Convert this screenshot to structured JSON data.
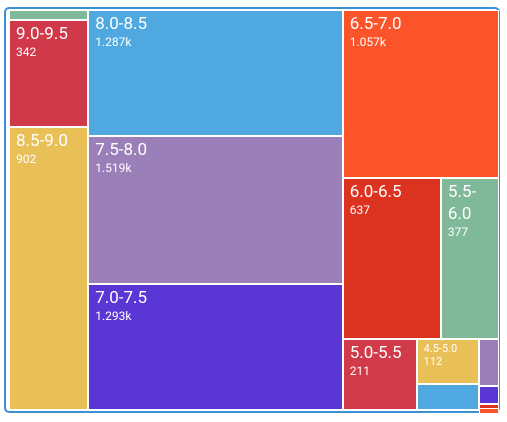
{
  "chart_data": {
    "type": "treemap",
    "categories": [
      null,
      "9.0-9.5",
      "8.5-9.0",
      "8.0-8.5",
      "7.5-8.0",
      "7.0-7.5",
      "6.5-7.0",
      "6.0-6.5",
      "5.5-6.0",
      "5.0-5.5",
      "4.5-5.0",
      null,
      null,
      null,
      null,
      null
    ],
    "values": [
      32,
      342,
      902,
      1287,
      1519,
      1293,
      1057,
      637,
      377,
      211,
      112,
      66,
      38,
      14,
      3,
      2
    ],
    "value_labels": [
      null,
      "342",
      "902",
      "1.287k",
      "1.519k",
      "1.293k",
      "1.057k",
      "637",
      "377",
      "211",
      "112",
      null,
      null,
      null,
      null,
      null
    ],
    "colors": [
      "#80b99a",
      "#d0394a",
      "#e9bf57",
      "#4fa9e0",
      "#9b7fb8",
      "#5a36d4",
      "#fb542b",
      "#dc3220",
      "#80b99a",
      "#d13a48",
      "#e9bf57",
      "#4fa9e0",
      "#9b7fb8",
      "#5a36d4",
      "#dc3220",
      "#fb542b"
    ]
  }
}
